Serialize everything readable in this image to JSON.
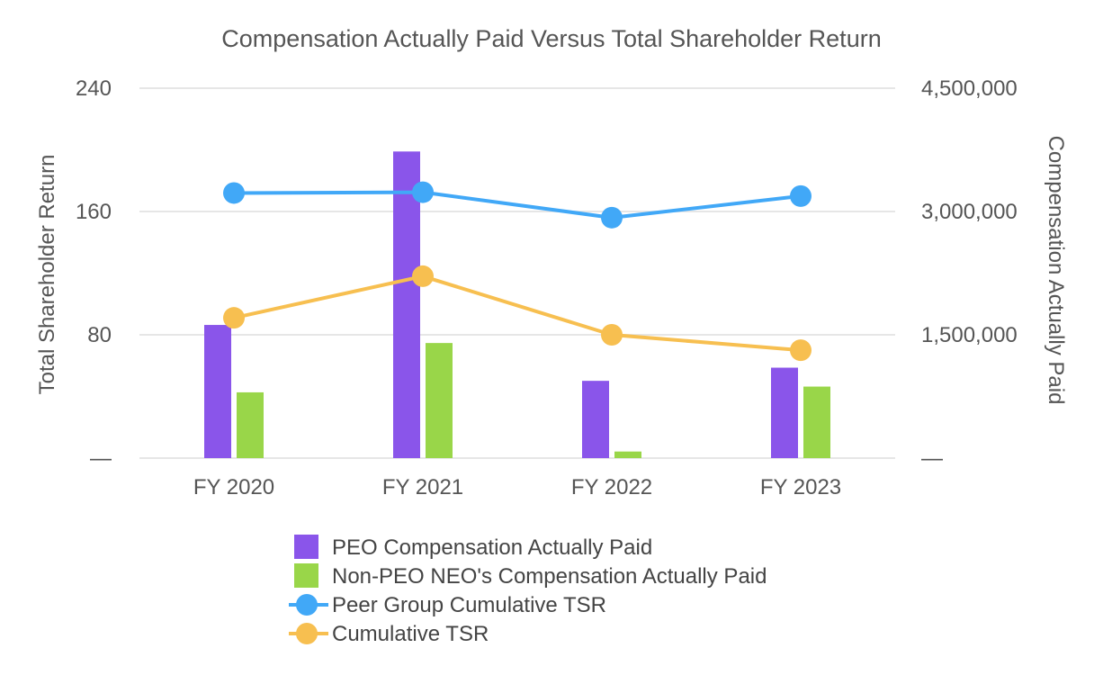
{
  "chart_data": {
    "type": "bar+line",
    "title": "Compensation Actually Paid Versus Total Shareholder Return",
    "categories": [
      "FY 2020",
      "FY 2021",
      "FY 2022",
      "FY 2023"
    ],
    "left_axis": {
      "label": "Total Shareholder Return",
      "ylim": [
        0,
        240
      ],
      "ticks": [
        0,
        80,
        160,
        240
      ],
      "tick_labels": [
        "—",
        "80",
        "160",
        "240"
      ]
    },
    "right_axis": {
      "label": "Compensation Actually Paid",
      "ylim": [
        0,
        4500000
      ],
      "ticks": [
        0,
        1500000,
        3000000,
        4500000
      ],
      "tick_labels": [
        "—",
        "1,500,000",
        "3,000,000",
        "4,500,000"
      ]
    },
    "grid": true,
    "legend_position": "bottom",
    "series": [
      {
        "name": "PEO Compensation Actually Paid",
        "type": "bar",
        "axis": "right",
        "color": "#8a55ea",
        "values": [
          1620000,
          3730000,
          940000,
          1100000
        ]
      },
      {
        "name": "Non-PEO NEO's Compensation Actually Paid",
        "type": "bar",
        "axis": "right",
        "color": "#99d649",
        "values": [
          800000,
          1400000,
          80000,
          870000
        ]
      },
      {
        "name": "Peer Group Cumulative TSR",
        "type": "line",
        "axis": "left",
        "color": "#41a8f7",
        "values": [
          172,
          172.5,
          156,
          170
        ]
      },
      {
        "name": "Cumulative TSR",
        "type": "line",
        "axis": "left",
        "color": "#f7bf50",
        "values": [
          91,
          118,
          80,
          70
        ]
      }
    ]
  }
}
